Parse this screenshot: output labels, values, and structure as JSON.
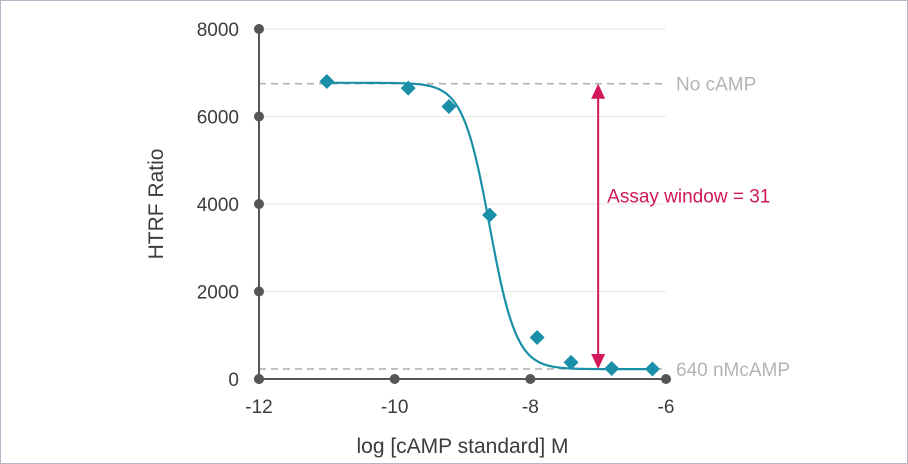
{
  "chart_data": {
    "type": "scatter",
    "xlabel": "log [cAMP standard] M",
    "ylabel": "HTRF Ratio",
    "xlim": [
      -12,
      -6
    ],
    "ylim": [
      0,
      8000
    ],
    "xticks": [
      -12,
      -10,
      -8,
      -6
    ],
    "yticks": [
      0,
      2000,
      4000,
      6000,
      8000
    ],
    "grid": "horizontal",
    "series": [
      {
        "x": [
          -11,
          -9.8,
          -9.2,
          -8.6,
          -7.9,
          -7.4,
          -6.8,
          -6.2
        ],
        "y": [
          6800,
          6650,
          6230,
          3750,
          950,
          380,
          240,
          230
        ],
        "fit": "sigmoid",
        "color": "#1a8fa8"
      }
    ],
    "reference_lines": [
      {
        "label": "No cAMP",
        "y": 6750
      },
      {
        "label": "640 nMcAMP",
        "y": 230
      }
    ],
    "annotation": {
      "label": "Assay window = 31",
      "x": -7,
      "y_from": 6750,
      "y_to": 230,
      "color": "#d0185a"
    },
    "colors": {
      "axis": "#555555",
      "grid": "#e6e6e6",
      "reference": "#b4b4b4"
    }
  }
}
